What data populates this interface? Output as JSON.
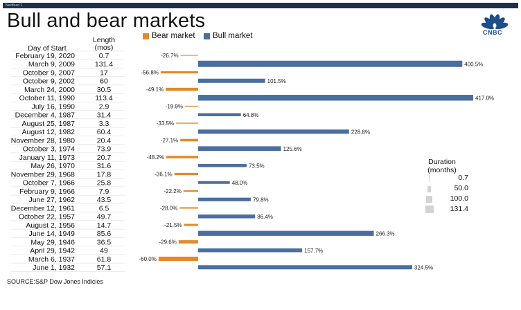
{
  "header_bar_label": "Nextfeed 1",
  "title": "Bull and bear markets",
  "logo_text": "CNBC",
  "legend": [
    {
      "name": "Bear market",
      "color": "#e08a2b"
    },
    {
      "name": "Bull market",
      "color": "#4b6ea0"
    }
  ],
  "columns": {
    "day": "Day of Start",
    "length_line1": "Length",
    "length_line2": "(mos)"
  },
  "duration_legend": {
    "title_line1": "Duration",
    "title_line2": "(months)",
    "items": [
      "0.7",
      "50.0",
      "100.0",
      "131.4"
    ]
  },
  "source": "SOURCE:S&P Dow Jones Indicies",
  "chart_data": {
    "type": "bar",
    "orientation": "horizontal",
    "title": "Bull and bear markets",
    "x_range_pct": [
      -60,
      417
    ],
    "series": [
      {
        "name": "Bear market",
        "color": "#e08a2b"
      },
      {
        "name": "Bull market",
        "color": "#4b6ea0"
      }
    ],
    "rows": [
      {
        "day": "February 19, 2020",
        "length": "0.7",
        "change": -26.7,
        "label": "-26.7%",
        "type": "bear"
      },
      {
        "day": "March 9, 2009",
        "length": "131.4",
        "change": 400.5,
        "label": "400.5%",
        "type": "bull"
      },
      {
        "day": "October 9, 2007",
        "length": "17",
        "change": -56.8,
        "label": "-56.8%",
        "type": "bear"
      },
      {
        "day": "October 9, 2002",
        "length": "60",
        "change": 101.5,
        "label": "101.5%",
        "type": "bull"
      },
      {
        "day": "March 24, 2000",
        "length": "30.5",
        "change": -49.1,
        "label": "-49.1%",
        "type": "bear"
      },
      {
        "day": "October 11, 1990",
        "length": "113.4",
        "change": 417.0,
        "label": "417.0%",
        "type": "bull"
      },
      {
        "day": "July 16, 1990",
        "length": "2.9",
        "change": -19.9,
        "label": "-19.9%",
        "type": "bear"
      },
      {
        "day": "December 4, 1987",
        "length": "31.4",
        "change": 64.8,
        "label": "64.8%",
        "type": "bull"
      },
      {
        "day": "August 25, 1987",
        "length": "3.3",
        "change": -33.5,
        "label": "-33.5%",
        "type": "bear"
      },
      {
        "day": "August 12, 1982",
        "length": "60.4",
        "change": 228.8,
        "label": "228.8%",
        "type": "bull"
      },
      {
        "day": "November 28, 1980",
        "length": "20.4",
        "change": -27.1,
        "label": "-27.1%",
        "type": "bear"
      },
      {
        "day": "October 3, 1974",
        "length": "73.9",
        "change": 125.6,
        "label": "125.6%",
        "type": "bull"
      },
      {
        "day": "January 11, 1973",
        "length": "20.7",
        "change": -48.2,
        "label": "-48.2%",
        "type": "bear"
      },
      {
        "day": "May 26, 1970",
        "length": "31.6",
        "change": 73.5,
        "label": "73.5%",
        "type": "bull"
      },
      {
        "day": "November 29, 1968",
        "length": "17.8",
        "change": -36.1,
        "label": "-36.1%",
        "type": "bear"
      },
      {
        "day": "October 7, 1966",
        "length": "25.8",
        "change": 48.0,
        "label": "48.0%",
        "type": "bull"
      },
      {
        "day": "February 9, 1966",
        "length": "7.9",
        "change": -22.2,
        "label": "-22.2%",
        "type": "bear"
      },
      {
        "day": "June 27, 1962",
        "length": "43.5",
        "change": 79.8,
        "label": "79.8%",
        "type": "bull"
      },
      {
        "day": "December 12, 1961",
        "length": "6.5",
        "change": -28.0,
        "label": "-28.0%",
        "type": "bear"
      },
      {
        "day": "October 22, 1957",
        "length": "49.7",
        "change": 86.4,
        "label": "86.4%",
        "type": "bull"
      },
      {
        "day": "August 2, 1956",
        "length": "14.7",
        "change": -21.5,
        "label": "-21.5%",
        "type": "bear"
      },
      {
        "day": "June 14, 1949",
        "length": "85.6",
        "change": 266.3,
        "label": "266.3%",
        "type": "bull"
      },
      {
        "day": "May 29, 1946",
        "length": "36.5",
        "change": -29.6,
        "label": "-29.6%",
        "type": "bear"
      },
      {
        "day": "April 29, 1942",
        "length": "49",
        "change": 157.7,
        "label": "157.7%",
        "type": "bull"
      },
      {
        "day": "March 6, 1937",
        "length": "61.8",
        "change": -60.0,
        "label": "-60.0%",
        "type": "bear"
      },
      {
        "day": "June 1, 1932",
        "length": "57.1",
        "change": 324.5,
        "label": "324.5%",
        "type": "bull"
      }
    ]
  }
}
